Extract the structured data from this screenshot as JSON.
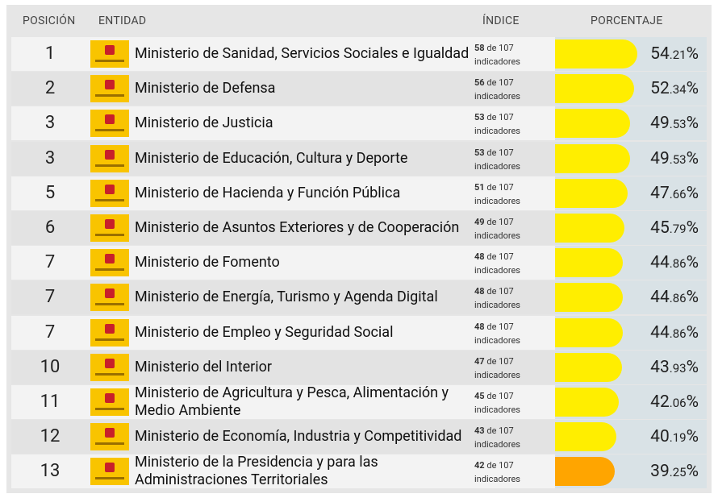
{
  "header": {
    "position": "POSICIÓN",
    "entity": "ENTIDAD",
    "index": "ÍNDICE",
    "percentage": "PORCENTAJE"
  },
  "rows": [
    {
      "position": "1",
      "entity": "Ministerio de Sanidad, Servicios Sociales e Igualdad",
      "count": "58",
      "total": "de 107",
      "unit": "indicadores",
      "percent": "54.21%",
      "color": "#ffee00"
    },
    {
      "position": "2",
      "entity": "Ministerio de Defensa",
      "count": "56",
      "total": "de 107",
      "unit": "indicadores",
      "percent": "52.34%",
      "color": "#ffee00"
    },
    {
      "position": "3",
      "entity": "Ministerio de Justicia",
      "count": "53",
      "total": "de 107",
      "unit": "indicadores",
      "percent": "49.53%",
      "color": "#ffee00"
    },
    {
      "position": "3",
      "entity": "Ministerio de Educación, Cultura y Deporte",
      "count": "53",
      "total": "de 107",
      "unit": "indicadores",
      "percent": "49.53%",
      "color": "#ffee00"
    },
    {
      "position": "5",
      "entity": "Ministerio de Hacienda y Función Pública",
      "count": "51",
      "total": "de 107",
      "unit": "indicadores",
      "percent": "47.66%",
      "color": "#ffee00"
    },
    {
      "position": "6",
      "entity": "Ministerio de Asuntos Exteriores y de Cooperación",
      "count": "49",
      "total": "de 107",
      "unit": "indicadores",
      "percent": "45.79%",
      "color": "#ffee00"
    },
    {
      "position": "7",
      "entity": "Ministerio de Fomento",
      "count": "48",
      "total": "de 107",
      "unit": "indicadores",
      "percent": "44.86%",
      "color": "#ffee00"
    },
    {
      "position": "7",
      "entity": "Ministerio de Energía, Turismo y Agenda Digital",
      "count": "48",
      "total": "de 107",
      "unit": "indicadores",
      "percent": "44.86%",
      "color": "#ffee00"
    },
    {
      "position": "7",
      "entity": "Ministerio de Empleo y Seguridad Social",
      "count": "48",
      "total": "de 107",
      "unit": "indicadores",
      "percent": "44.86%",
      "color": "#ffee00"
    },
    {
      "position": "10",
      "entity": "Ministerio del Interior",
      "count": "47",
      "total": "de 107",
      "unit": "indicadores",
      "percent": "43.93%",
      "color": "#ffee00"
    },
    {
      "position": "11",
      "entity": "Ministerio de Agricultura y Pesca, Alimentación y Medio Ambiente",
      "count": "45",
      "total": "de 107",
      "unit": "indicadores",
      "percent": "42.06%",
      "color": "#ffee00"
    },
    {
      "position": "12",
      "entity": "Ministerio de Economía, Industria y Competitividad",
      "count": "43",
      "total": "de 107",
      "unit": "indicadores",
      "percent": "40.19%",
      "color": "#ffee00"
    },
    {
      "position": "13",
      "entity": "Ministerio de la Presidencia y para las Administraciones Territoriales",
      "count": "42",
      "total": "de 107",
      "unit": "indicadores",
      "percent": "39.25%",
      "color": "#ffa500"
    }
  ]
}
